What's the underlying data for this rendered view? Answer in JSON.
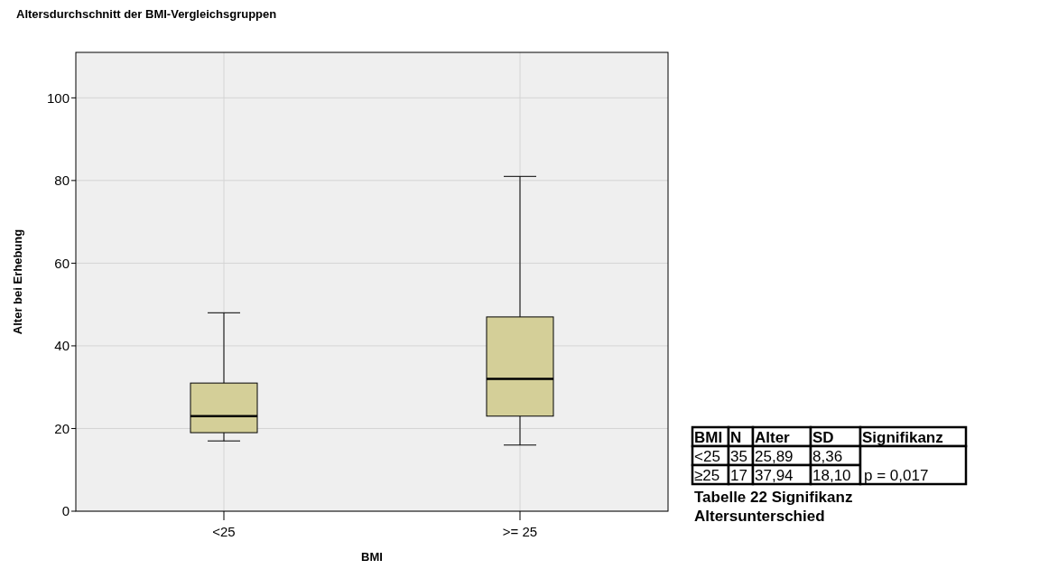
{
  "chart_data": [
    {
      "type": "box",
      "title": "Altersdurchschnitt der BMI-Vergleichsgruppen",
      "xlabel": "BMI",
      "ylabel": "Alter bei Erhebung",
      "categories": [
        "<25",
        ">= 25"
      ],
      "color": "#d4cf98",
      "boxes": [
        {
          "low": 17,
          "q1": 19,
          "median": 23,
          "q3": 31,
          "high": 48
        },
        {
          "low": 16,
          "q1": 23,
          "median": 32,
          "q3": 47,
          "high": 81
        }
      ],
      "ylim": [
        0,
        111
      ],
      "yticks": [
        0,
        20,
        40,
        60,
        80,
        100
      ],
      "grid": true
    },
    {
      "type": "other",
      "categories": [
        "BMI",
        "N",
        "Alter",
        "SD",
        "Signifikanz"
      ],
      "cells": [
        [
          "<25",
          "35",
          "25,89",
          "8,36",
          null
        ],
        [
          "≥25",
          "17",
          "37,94",
          "18,10",
          "p = 0,017"
        ]
      ],
      "annotations": [
        "Tabelle 22 Signifikanz",
        "Altersunterschied"
      ]
    }
  ]
}
